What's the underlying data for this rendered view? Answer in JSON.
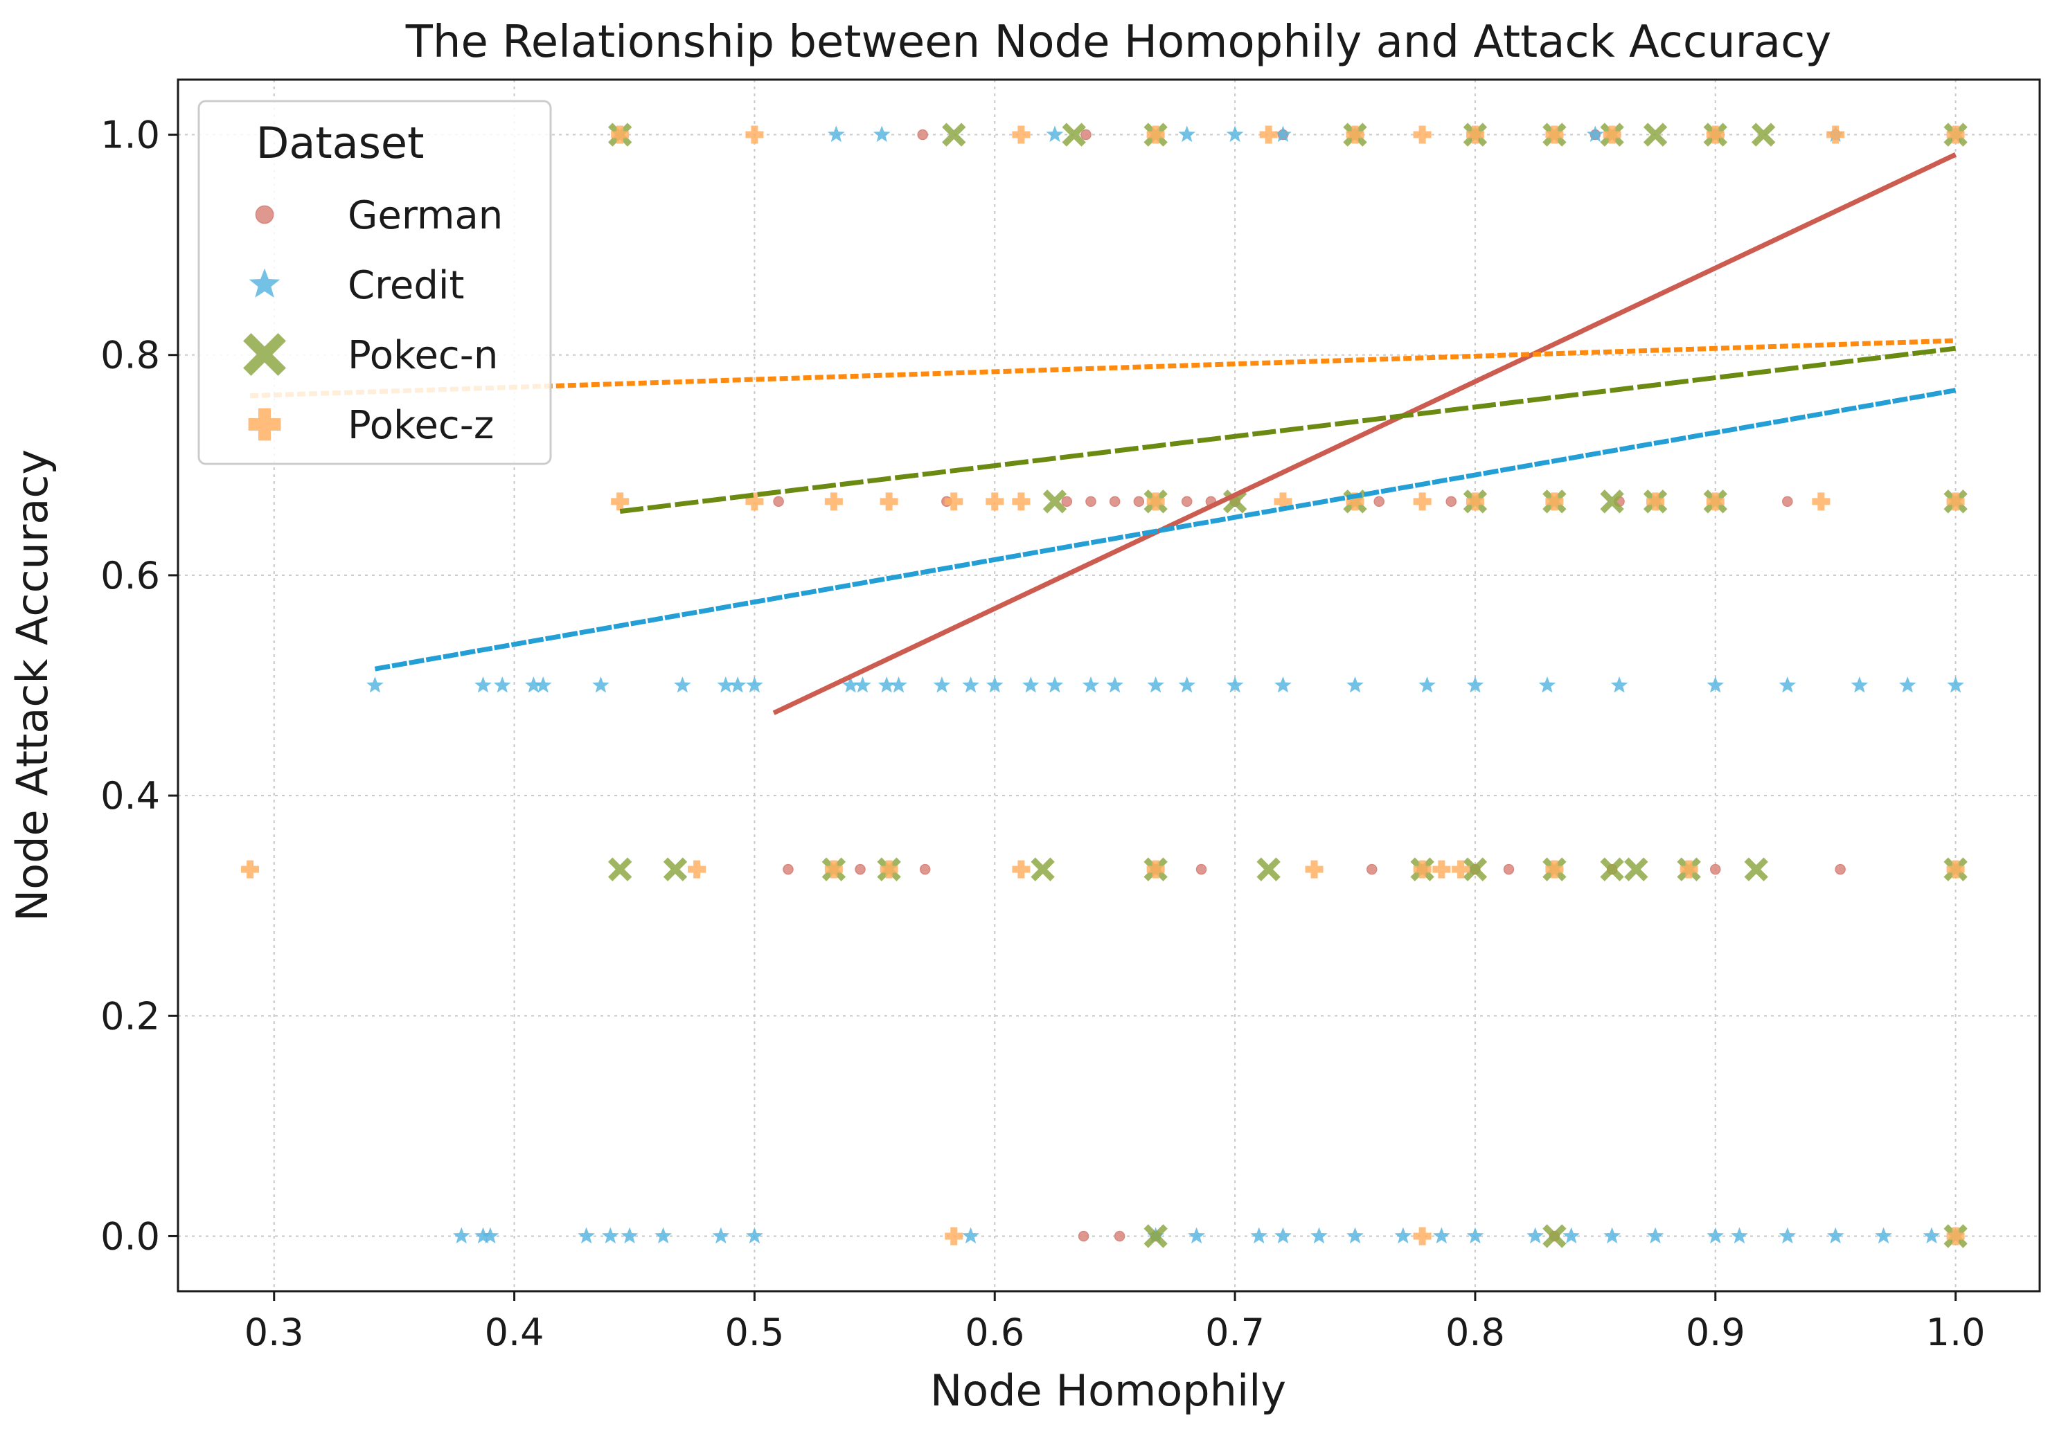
{
  "chart_data": {
    "type": "scatter",
    "title": "The Relationship between Node Homophily and Attack Accuracy",
    "xlabel": "Node Homophily",
    "ylabel": "Node Attack Accuracy",
    "xlim": [
      0.26,
      1.035
    ],
    "ylim": [
      -0.05,
      1.05
    ],
    "xticks": [
      0.3,
      0.4,
      0.5,
      0.6,
      0.7,
      0.8,
      0.9,
      1.0
    ],
    "xtick_labels": [
      "0.3",
      "0.4",
      "0.5",
      "0.6",
      "0.7",
      "0.8",
      "0.9",
      "1.0"
    ],
    "yticks": [
      0.0,
      0.2,
      0.4,
      0.6,
      0.8,
      1.0
    ],
    "ytick_labels": [
      "0.0",
      "0.2",
      "0.4",
      "0.6",
      "0.8",
      "1.0"
    ],
    "grid": true,
    "legend": {
      "title": "Dataset",
      "position": "top-left"
    },
    "series": [
      {
        "name": "German",
        "marker": "circle",
        "color": "#d9867c",
        "trend_color": "#cd5c50",
        "trend_style": "solid",
        "trend": {
          "x": [
            0.508,
            1.0
          ],
          "y": [
            0.475,
            0.982
          ]
        },
        "points": [
          {
            "y": 1.0,
            "x": [
              0.57,
              0.638,
              0.72,
              0.75,
              0.8,
              0.85,
              0.9,
              0.95
            ]
          },
          {
            "y": 0.667,
            "x": [
              0.51,
              0.58,
              0.63,
              0.64,
              0.65,
              0.66,
              0.68,
              0.69,
              0.7,
              0.76,
              0.79,
              0.86,
              0.93
            ]
          },
          {
            "y": 0.333,
            "x": [
              0.514,
              0.544,
              0.571,
              0.667,
              0.686,
              0.757,
              0.778,
              0.8,
              0.814,
              0.857,
              0.9,
              0.952
            ]
          },
          {
            "y": 0.0,
            "x": [
              0.637,
              0.652,
              0.667,
              0.833
            ]
          }
        ]
      },
      {
        "name": "Credit",
        "marker": "star",
        "color": "#5bb6e0",
        "trend_color": "#239fd6",
        "trend_style": "dashed",
        "trend": {
          "x": [
            0.342,
            1.0
          ],
          "y": [
            0.515,
            0.768
          ]
        },
        "points": [
          {
            "y": 1.0,
            "x": [
              0.534,
              0.553,
              0.625,
              0.68,
              0.7,
              0.72,
              0.75,
              0.8,
              0.85,
              0.9,
              0.95,
              1.0
            ]
          },
          {
            "y": 0.5,
            "x": [
              0.342,
              0.387,
              0.395,
              0.408,
              0.412,
              0.436,
              0.47,
              0.488,
              0.493,
              0.5,
              0.54,
              0.545,
              0.555,
              0.56,
              0.578,
              0.59,
              0.6,
              0.615,
              0.625,
              0.64,
              0.65,
              0.667,
              0.68,
              0.7,
              0.72,
              0.75,
              0.78,
              0.8,
              0.83,
              0.86,
              0.9,
              0.93,
              0.96,
              0.98,
              1.0
            ]
          },
          {
            "y": 0.0,
            "x": [
              0.378,
              0.387,
              0.39,
              0.43,
              0.44,
              0.448,
              0.462,
              0.486,
              0.5,
              0.59,
              0.667,
              0.684,
              0.71,
              0.72,
              0.735,
              0.75,
              0.77,
              0.786,
              0.8,
              0.825,
              0.84,
              0.857,
              0.875,
              0.9,
              0.91,
              0.93,
              0.95,
              0.97,
              0.99,
              1.0
            ]
          }
        ]
      },
      {
        "name": "Pokec-n",
        "marker": "x",
        "color": "#8fa845",
        "trend_color": "#6b8a12",
        "trend_style": "dashed-long",
        "trend": {
          "x": [
            0.444,
            1.0
          ],
          "y": [
            0.658,
            0.806
          ]
        },
        "points": [
          {
            "y": 1.0,
            "x": [
              0.444,
              0.583,
              0.633,
              0.667,
              0.75,
              0.8,
              0.833,
              0.857,
              0.875,
              0.9,
              0.92,
              1.0
            ]
          },
          {
            "y": 0.667,
            "x": [
              0.625,
              0.667,
              0.7,
              0.75,
              0.8,
              0.833,
              0.857,
              0.875,
              0.9,
              1.0
            ]
          },
          {
            "y": 0.333,
            "x": [
              0.444,
              0.467,
              0.533,
              0.556,
              0.62,
              0.667,
              0.714,
              0.778,
              0.8,
              0.833,
              0.857,
              0.867,
              0.889,
              0.917,
              1.0
            ]
          },
          {
            "y": 0.0,
            "x": [
              0.667,
              0.833,
              1.0
            ]
          }
        ]
      },
      {
        "name": "Pokec-z",
        "marker": "plus",
        "color": "#ffb063",
        "trend_color": "#ff8a0d",
        "trend_style": "dotted",
        "trend": {
          "x": [
            0.29,
            1.0
          ],
          "y": [
            0.763,
            0.813
          ]
        },
        "points": [
          {
            "y": 1.0,
            "x": [
              0.444,
              0.5,
              0.611,
              0.667,
              0.714,
              0.75,
              0.778,
              0.8,
              0.833,
              0.857,
              0.9,
              0.95,
              1.0
            ]
          },
          {
            "y": 0.667,
            "x": [
              0.444,
              0.5,
              0.533,
              0.556,
              0.583,
              0.6,
              0.611,
              0.667,
              0.72,
              0.75,
              0.778,
              0.8,
              0.833,
              0.875,
              0.9,
              0.944,
              1.0
            ]
          },
          {
            "y": 0.333,
            "x": [
              0.29,
              0.476,
              0.533,
              0.556,
              0.611,
              0.667,
              0.733,
              0.778,
              0.786,
              0.794,
              0.833,
              0.889,
              1.0
            ]
          },
          {
            "y": 0.0,
            "x": [
              0.583,
              0.778,
              1.0
            ]
          }
        ]
      }
    ]
  }
}
